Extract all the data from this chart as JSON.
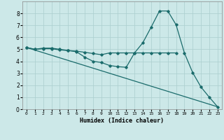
{
  "xlabel": "Humidex (Indice chaleur)",
  "xlim": [
    -0.5,
    23.5
  ],
  "ylim": [
    0,
    9
  ],
  "xticks": [
    0,
    1,
    2,
    3,
    4,
    5,
    6,
    7,
    8,
    9,
    10,
    11,
    12,
    13,
    14,
    15,
    16,
    17,
    18,
    19,
    20,
    21,
    22,
    23
  ],
  "yticks": [
    0,
    1,
    2,
    3,
    4,
    5,
    6,
    7,
    8
  ],
  "background_color": "#cce8e8",
  "grid_color": "#aacece",
  "line_color": "#1a6b6b",
  "line1_x": [
    0,
    1,
    2,
    3,
    4,
    5,
    6,
    7,
    8,
    9,
    10,
    11,
    12,
    13,
    14,
    15,
    16,
    17,
    18,
    19,
    20,
    21,
    22,
    23
  ],
  "line1_y": [
    5.15,
    5.0,
    5.1,
    5.1,
    5.0,
    4.9,
    4.8,
    4.35,
    4.0,
    3.9,
    3.65,
    3.55,
    3.5,
    4.7,
    5.55,
    6.85,
    8.2,
    8.2,
    7.05,
    4.7,
    3.05,
    1.85,
    1.0,
    0.2
  ],
  "line2_x": [
    0,
    23
  ],
  "line2_y": [
    5.15,
    0.2
  ],
  "line3_x": [
    0,
    1,
    2,
    3,
    4,
    5,
    6,
    7,
    8,
    9,
    10,
    11,
    12,
    13,
    14,
    15,
    16,
    17,
    18
  ],
  "line3_y": [
    5.15,
    5.0,
    5.05,
    5.05,
    4.95,
    4.9,
    4.85,
    4.75,
    4.65,
    4.55,
    4.7,
    4.7,
    4.7,
    4.7,
    4.7,
    4.7,
    4.7,
    4.7,
    4.7
  ]
}
